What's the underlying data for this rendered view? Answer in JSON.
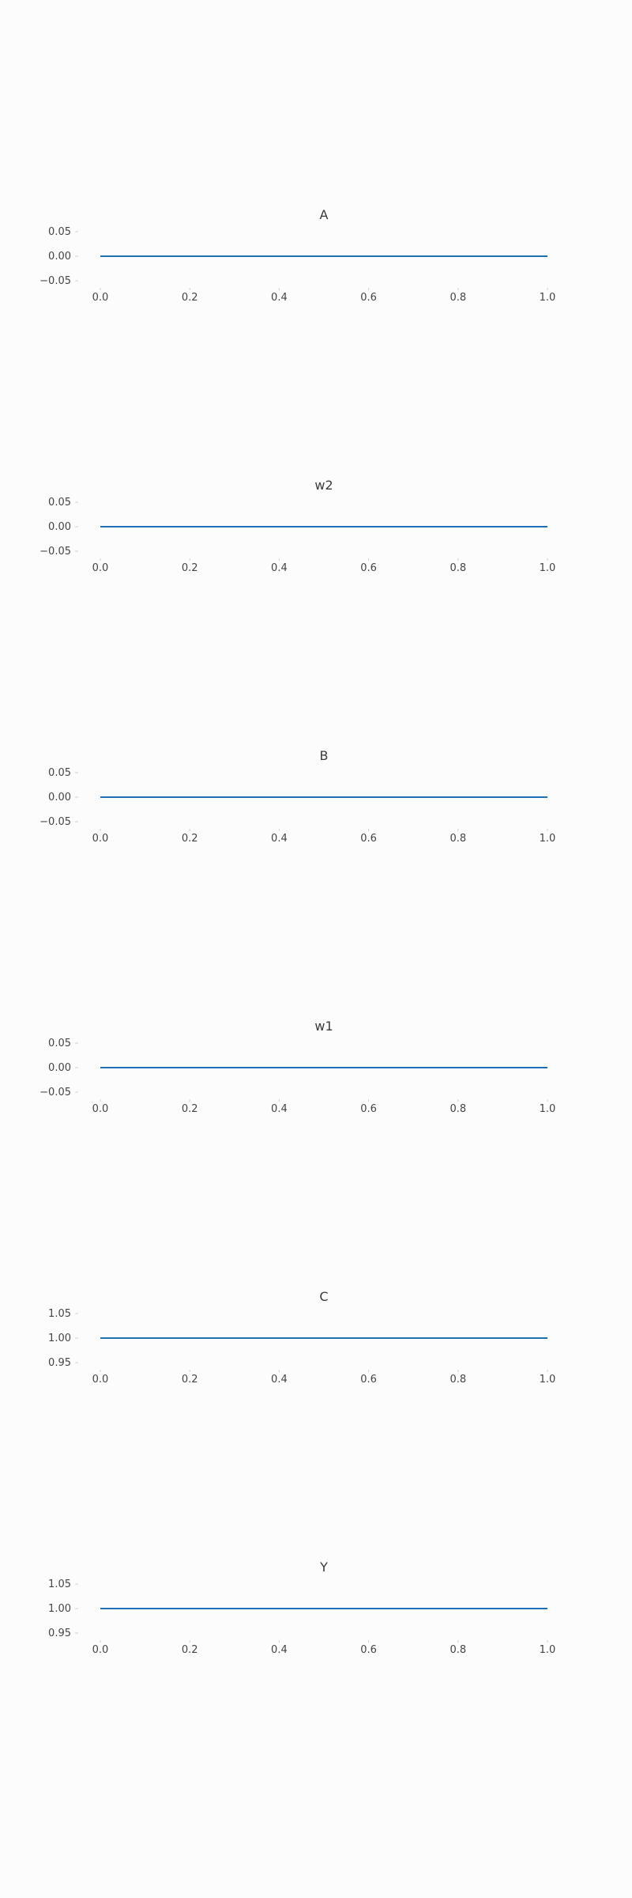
{
  "chart_data": [
    {
      "type": "line",
      "title": "A",
      "x": [
        0.0,
        1.0
      ],
      "y": [
        0.0,
        0.0
      ],
      "xlim": [
        0.0,
        1.0
      ],
      "ylim": [
        -0.05,
        0.05
      ],
      "xticks": [
        "0.0",
        "0.2",
        "0.4",
        "0.6",
        "0.8",
        "1.0"
      ],
      "yticks": [
        "0.05",
        "0.00",
        "−0.05"
      ],
      "grid": false
    },
    {
      "type": "line",
      "title": "w2",
      "x": [
        0.0,
        1.0
      ],
      "y": [
        0.0,
        0.0
      ],
      "xlim": [
        0.0,
        1.0
      ],
      "ylim": [
        -0.05,
        0.05
      ],
      "xticks": [
        "0.0",
        "0.2",
        "0.4",
        "0.6",
        "0.8",
        "1.0"
      ],
      "yticks": [
        "0.05",
        "0.00",
        "−0.05"
      ],
      "grid": false
    },
    {
      "type": "line",
      "title": "B",
      "x": [
        0.0,
        1.0
      ],
      "y": [
        0.0,
        0.0
      ],
      "xlim": [
        0.0,
        1.0
      ],
      "ylim": [
        -0.05,
        0.05
      ],
      "xticks": [
        "0.0",
        "0.2",
        "0.4",
        "0.6",
        "0.8",
        "1.0"
      ],
      "yticks": [
        "0.05",
        "0.00",
        "−0.05"
      ],
      "grid": false
    },
    {
      "type": "line",
      "title": "w1",
      "x": [
        0.0,
        1.0
      ],
      "y": [
        0.0,
        0.0
      ],
      "xlim": [
        0.0,
        1.0
      ],
      "ylim": [
        -0.05,
        0.05
      ],
      "xticks": [
        "0.0",
        "0.2",
        "0.4",
        "0.6",
        "0.8",
        "1.0"
      ],
      "yticks": [
        "0.05",
        "0.00",
        "−0.05"
      ],
      "grid": false
    },
    {
      "type": "line",
      "title": "C",
      "x": [
        0.0,
        1.0
      ],
      "y": [
        1.0,
        1.0
      ],
      "xlim": [
        0.0,
        1.0
      ],
      "ylim": [
        0.95,
        1.05
      ],
      "xticks": [
        "0.0",
        "0.2",
        "0.4",
        "0.6",
        "0.8",
        "1.0"
      ],
      "yticks": [
        "1.05",
        "1.00",
        "0.95"
      ],
      "grid": false
    },
    {
      "type": "line",
      "title": "Y",
      "x": [
        0.0,
        1.0
      ],
      "y": [
        1.0,
        1.0
      ],
      "xlim": [
        0.0,
        1.0
      ],
      "ylim": [
        0.95,
        1.05
      ],
      "xticks": [
        "0.0",
        "0.2",
        "0.4",
        "0.6",
        "0.8",
        "1.0"
      ],
      "yticks": [
        "1.05",
        "1.00",
        "0.95"
      ],
      "grid": false
    }
  ],
  "colors": {
    "line": "#1f6fb3",
    "tick": "#cfcfcf",
    "background": "#fcfcfc"
  }
}
